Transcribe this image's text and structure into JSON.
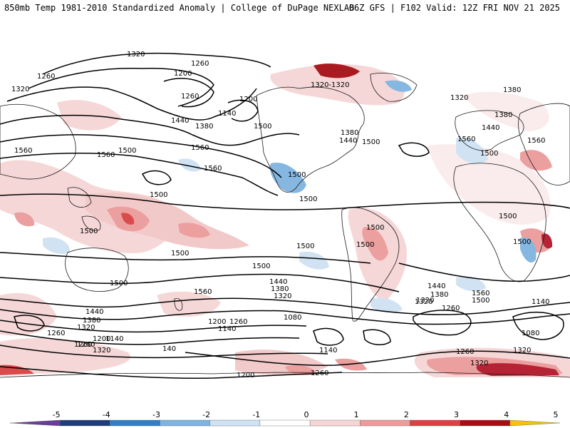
{
  "header": {
    "left_title": "850mb Temp 1981-2010 Standardized Anomaly | College of DuPage NEXLAB",
    "right_title": "06Z GFS | F102 Valid: 12Z FRI NOV 21 2025"
  },
  "colorbar": {
    "ticks": [
      "-5",
      "-4",
      "-3",
      "-2",
      "-1",
      "0",
      "1",
      "2",
      "3",
      "4",
      "5"
    ],
    "colors": {
      "n5": "#6a3d9a",
      "n4": "#1f3d7a",
      "n3": "#2f7fc8",
      "n2": "#7fb4e0",
      "n1": "#cfe2f3",
      "zero": "#ffffff",
      "p1": "#f6d5d5",
      "p2": "#ec9a9a",
      "p3": "#d94343",
      "p4": "#a50f15",
      "p5": "#f2c20f"
    }
  },
  "contour_labels": [
    {
      "text": "1320"
    },
    {
      "text": "1260"
    },
    {
      "text": "1200"
    },
    {
      "text": "1260"
    },
    {
      "text": "1320"
    },
    {
      "text": "1260"
    },
    {
      "text": "1200"
    },
    {
      "text": "1140"
    },
    {
      "text": "1440"
    },
    {
      "text": "1380"
    },
    {
      "text": "1500"
    },
    {
      "text": "1560"
    },
    {
      "text": "1560"
    },
    {
      "text": "1500"
    },
    {
      "text": "1560"
    },
    {
      "text": "1560"
    },
    {
      "text": "1320-1320"
    },
    {
      "text": "1380"
    },
    {
      "text": "1440"
    },
    {
      "text": "1500"
    },
    {
      "text": "1320"
    },
    {
      "text": "1380"
    },
    {
      "text": "1380"
    },
    {
      "text": "1440"
    },
    {
      "text": "1560"
    },
    {
      "text": "1500"
    },
    {
      "text": "1560"
    },
    {
      "text": "1500"
    },
    {
      "text": "1500"
    },
    {
      "text": "1500"
    },
    {
      "text": "1500"
    },
    {
      "text": "1500"
    },
    {
      "text": "1500"
    },
    {
      "text": "1500"
    },
    {
      "text": "1500"
    },
    {
      "text": "1500"
    },
    {
      "text": "1500"
    },
    {
      "text": "1500"
    },
    {
      "text": "1500"
    },
    {
      "text": "1440"
    },
    {
      "text": "1380"
    },
    {
      "text": "1320"
    },
    {
      "text": "1560"
    },
    {
      "text": "1440"
    },
    {
      "text": "1380"
    },
    {
      "text": "1320"
    },
    {
      "text": "1200"
    },
    {
      "text": "1260"
    },
    {
      "text": "1140"
    },
    {
      "text": "1080"
    },
    {
      "text": "1140"
    },
    {
      "text": "1440"
    },
    {
      "text": "1380"
    },
    {
      "text": "1320"
    },
    {
      "text": "1260"
    },
    {
      "text": "1560"
    },
    {
      "text": "1500"
    },
    {
      "text": "1320"
    },
    {
      "text": "1260"
    },
    {
      "text": "1140"
    },
    {
      "text": "1080"
    },
    {
      "text": "1260"
    },
    {
      "text": "1200"
    },
    {
      "text": "1260"
    },
    {
      "text": "1320"
    },
    {
      "text": "140"
    },
    {
      "text": "1140"
    },
    {
      "text": "1200"
    },
    {
      "text": "1260"
    },
    {
      "text": "1260"
    },
    {
      "text": "1320"
    },
    {
      "text": "1320"
    }
  ]
}
